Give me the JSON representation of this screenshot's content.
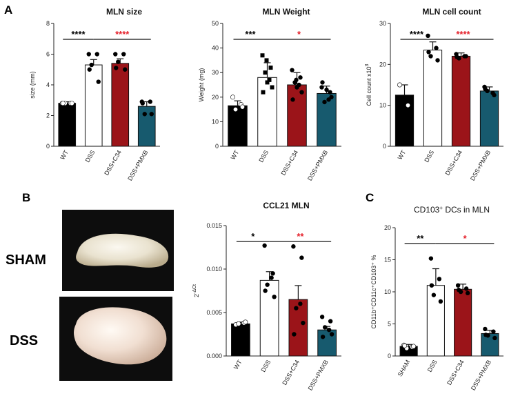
{
  "panels": {
    "a": "A",
    "b": "B",
    "c": "C"
  },
  "photo_labels": {
    "sham": "SHAM",
    "dss": "DSS"
  },
  "colors": {
    "wt": "#000000",
    "dss": "#ffffff",
    "c34": "#9b1419",
    "pmxb": "#175a6e",
    "sig_black": "#000000",
    "sig_red": "#e5202a"
  },
  "chart_data": [
    {
      "id": "mln_size",
      "type": "bar",
      "title": "MLN size",
      "ylabel": "size (mm)",
      "ylim": [
        0,
        8
      ],
      "yticks": [
        "0",
        "2",
        "4",
        "6",
        "8"
      ],
      "categories": [
        "WT",
        "DSS",
        "DSS+C34",
        "DSS+PMXB"
      ],
      "values": [
        2.8,
        5.3,
        5.4,
        2.6
      ],
      "errors": [
        0.1,
        0.35,
        0.3,
        0.3
      ],
      "points": [
        [
          2.8,
          2.8,
          2.8,
          2.8,
          2.8
        ],
        [
          6.0,
          6.0,
          5.3,
          4.2,
          5.0
        ],
        [
          6.0,
          6.0,
          5.5,
          5.0,
          5.1
        ],
        [
          2.9,
          2.9,
          2.1,
          2.1,
          2.8
        ]
      ],
      "significance": [
        {
          "from": 0,
          "to": 1,
          "label": "****",
          "color": "black"
        },
        {
          "from": 1,
          "to": 3,
          "label": "****",
          "color": "red"
        }
      ]
    },
    {
      "id": "mln_weight",
      "type": "bar",
      "title": "MLN Weight",
      "ylabel": "Weight (mg)",
      "ylim": [
        0,
        50
      ],
      "yticks": [
        "0",
        "10",
        "20",
        "30",
        "40",
        "50"
      ],
      "categories": [
        "WT",
        "DSS",
        "DSS+C34",
        "DSS+PMXB"
      ],
      "values": [
        16.5,
        28,
        25,
        21.5
      ],
      "errors": [
        2,
        6,
        5,
        3
      ],
      "points": [
        [
          20,
          17,
          15,
          16
        ],
        [
          37,
          32,
          30,
          24,
          22,
          27,
          26,
          35
        ],
        [
          31,
          28,
          26,
          22,
          19,
          25,
          24,
          27
        ],
        [
          24,
          22,
          18,
          20,
          26,
          19,
          23
        ]
      ],
      "significance": [
        {
          "from": 0,
          "to": 1,
          "label": "***",
          "color": "black"
        },
        {
          "from": 1,
          "to": 3,
          "label": "*",
          "color": "red"
        }
      ]
    },
    {
      "id": "mln_cell_count",
      "type": "bar",
      "title": "MLN cell count",
      "ylabel": "Cell count x10",
      "ylabel_sup": "3",
      "ylim": [
        0,
        30
      ],
      "yticks": [
        "0",
        "10",
        "20",
        "30"
      ],
      "categories": [
        "WT",
        "DSS",
        "DSS+C34",
        "DSS+PMXB"
      ],
      "values": [
        12.5,
        23.5,
        22,
        13.5
      ],
      "errors": [
        2.5,
        2,
        0.8,
        1
      ],
      "points": [
        [
          15,
          10
        ],
        [
          27,
          24,
          22,
          21,
          23
        ],
        [
          22.5,
          22,
          21.5,
          22,
          21.8
        ],
        [
          14.5,
          13,
          13.5,
          12.5,
          14
        ]
      ],
      "significance": [
        {
          "from": 0,
          "to": 1,
          "label": "****",
          "color": "black"
        },
        {
          "from": 1,
          "to": 3,
          "label": "****",
          "color": "red"
        }
      ]
    },
    {
      "id": "ccl21_mln",
      "type": "bar",
      "title": "CCL21 MLN",
      "ylabel": "2",
      "ylabel_sup": "-ΔCt",
      "ylim": [
        0,
        0.015
      ],
      "yticks": [
        "0.000",
        "0.005",
        "0.010",
        "0.015"
      ],
      "categories": [
        "WT",
        "DSS",
        "DSS+C34",
        "DSS+PMXB"
      ],
      "values": [
        0.0037,
        0.0087,
        0.0065,
        0.003
      ],
      "errors": [
        0.0002,
        0.001,
        0.0016,
        0.0004
      ],
      "points": [
        [
          0.0036,
          0.0038,
          0.0037,
          0.0039
        ],
        [
          0.0127,
          0.0095,
          0.0082,
          0.0068,
          0.0075,
          0.009
        ],
        [
          0.0126,
          0.0113,
          0.0055,
          0.0038,
          0.0025,
          0.006
        ],
        [
          0.0045,
          0.004,
          0.0033,
          0.0025,
          0.0022,
          0.003
        ]
      ],
      "significance": [
        {
          "from": 0,
          "to": 1,
          "label": "*",
          "color": "black"
        },
        {
          "from": 1,
          "to": 3,
          "label": "**",
          "color": "red"
        }
      ]
    },
    {
      "id": "cd103_dcs",
      "type": "bar",
      "title": "CD103",
      "title_sup": "+",
      "title_rest": " DCs in  MLN",
      "ylabel": "CD11b⁺CD11c⁺CD103⁺ %",
      "ylim": [
        0,
        20
      ],
      "yticks": [
        "0",
        "5",
        "10",
        "15",
        "20"
      ],
      "categories": [
        "SHAM",
        "DSS",
        "DSS+C34",
        "DSS+PMXB"
      ],
      "values": [
        1.5,
        11,
        10.4,
        3.5
      ],
      "errors": [
        0.3,
        2.6,
        0.8,
        0.5
      ],
      "points": [
        [
          1.7,
          1.4,
          1.2,
          1.5,
          1.6
        ],
        [
          15.2,
          12,
          9.5,
          8.5,
          11
        ],
        [
          11,
          10.5,
          10,
          9.8,
          10.3
        ],
        [
          4.2,
          3.8,
          3.2,
          2.8,
          3.3
        ]
      ],
      "significance": [
        {
          "from": 0,
          "to": 1,
          "label": "**",
          "color": "black"
        },
        {
          "from": 1,
          "to": 3,
          "label": "*",
          "color": "red"
        }
      ]
    }
  ]
}
